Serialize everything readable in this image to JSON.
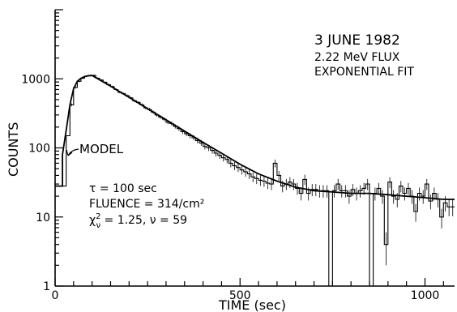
{
  "chart_data": {
    "type": "line",
    "title_lines": [
      "3 JUNE 1982",
      "2.22 MeV FLUX",
      "EXPONENTIAL FIT"
    ],
    "xlabel": "TIME (sec)",
    "ylabel": "COUNTS",
    "x_scale": "linear",
    "y_scale": "log",
    "xlim": [
      0,
      1080
    ],
    "ylim": [
      1,
      10000
    ],
    "x_ticks": [
      0,
      500,
      1000
    ],
    "x_tick_labels": [
      "0",
      "500",
      "1000"
    ],
    "y_ticks": [
      1,
      10,
      100,
      1000
    ],
    "y_tick_labels": [
      "1",
      "10",
      "100",
      "1000"
    ],
    "grid": false,
    "legend": "none",
    "annotations": {
      "model_label": "MODEL",
      "tau": "τ = 100 sec",
      "fluence": "FLUENCE = 314/cm²",
      "chi_prefix": "χ",
      "chi_sup": "2",
      "chi_sub": "ν",
      "chi_rest": " = 1.25, ν = 59"
    },
    "bin_width": 10,
    "series": [
      {
        "style": "histogram",
        "x": [
          0,
          10,
          20,
          30,
          40,
          50,
          60,
          70,
          80,
          90,
          100,
          110,
          120,
          130,
          140,
          150,
          160,
          170,
          180,
          190,
          200,
          210,
          220,
          230,
          240,
          250,
          260,
          270,
          280,
          290,
          300,
          310,
          320,
          330,
          340,
          350,
          360,
          370,
          380,
          390,
          400,
          410,
          420,
          430,
          440,
          450,
          460,
          470,
          480,
          490,
          500,
          510,
          520,
          530,
          540,
          550,
          560,
          570,
          580,
          590,
          600,
          610,
          620,
          630,
          640,
          650,
          660,
          670,
          680,
          690,
          700,
          710,
          720,
          730,
          740,
          750,
          760,
          770,
          780,
          790,
          800,
          810,
          820,
          830,
          840,
          850,
          860,
          870,
          880,
          890,
          900,
          910,
          920,
          930,
          940,
          950,
          960,
          970,
          980,
          990,
          1000,
          1010,
          1020,
          1030,
          1040,
          1050,
          1060,
          1070
        ],
        "values": [
          28,
          28,
          28,
          150,
          420,
          750,
          920,
          1020,
          1090,
          1110,
          1120,
          1020,
          960,
          890,
          820,
          770,
          700,
          640,
          610,
          570,
          530,
          480,
          455,
          420,
          380,
          360,
          330,
          300,
          280,
          260,
          235,
          225,
          205,
          190,
          172,
          160,
          150,
          140,
          128,
          118,
          105,
          100,
          92,
          84,
          78,
          72,
          68,
          60,
          55,
          52,
          48,
          45,
          42,
          38,
          36,
          34,
          33,
          31,
          30,
          60,
          40,
          28,
          30,
          32,
          30,
          26,
          22,
          35,
          22,
          25,
          25,
          24,
          24,
          24,
          1,
          24,
          30,
          24,
          24,
          20,
          25,
          22,
          24,
          26,
          30,
          1,
          22,
          26,
          20,
          4,
          32,
          20,
          18,
          28,
          22,
          26,
          20,
          12,
          22,
          20,
          30,
          17,
          22,
          18,
          10,
          16,
          14,
          14
        ]
      },
      {
        "style": "model",
        "name": "MODEL",
        "x": [
          0,
          20,
          20,
          30,
          40,
          50,
          60,
          70,
          80,
          90,
          100,
          150,
          200,
          250,
          300,
          350,
          400,
          450,
          500,
          550,
          600,
          650,
          700,
          750,
          800,
          850,
          900,
          950,
          1000,
          1050,
          1080
        ],
        "values": [
          28,
          28,
          80,
          180,
          420,
          720,
          920,
          1020,
          1080,
          1110,
          1120,
          780,
          540,
          370,
          255,
          175,
          120,
          84,
          58,
          42,
          33,
          27,
          24,
          23,
          22,
          22,
          21,
          20,
          19,
          18,
          18
        ]
      }
    ]
  }
}
